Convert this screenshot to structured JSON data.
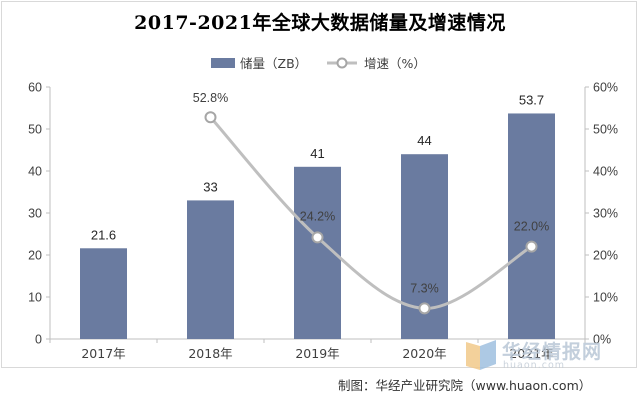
{
  "chart_data": {
    "type": "bar+line",
    "title": "2017-2021年全球大数据储量及增速情况",
    "categories": [
      "2017年",
      "2018年",
      "2019年",
      "2020年",
      "2021年"
    ],
    "bar_series": {
      "name": "储量（ZB）",
      "values": [
        21.6,
        33,
        41,
        44,
        53.7
      ],
      "labels": [
        "21.6",
        "33",
        "41",
        "44",
        "53.7"
      ],
      "color": "#6a7ba0"
    },
    "line_series": {
      "name": "增速（%）",
      "values": [
        null,
        52.8,
        24.2,
        7.3,
        22.0
      ],
      "labels": [
        "",
        "52.8%",
        "24.2%",
        "7.3%",
        "22.0%"
      ],
      "color": "#bfbfbf"
    },
    "y_left": {
      "ylim": [
        0,
        60
      ],
      "ticks": [
        0,
        10,
        20,
        30,
        40,
        50,
        60
      ]
    },
    "y_right": {
      "ylim": [
        0,
        60
      ],
      "ticks": [
        "0%",
        "10%",
        "20%",
        "30%",
        "40%",
        "50%",
        "60%"
      ]
    },
    "legend_position": "top-center",
    "grid": false
  },
  "source": "制图：华经产业研究院（www.huaon.com）",
  "watermark": {
    "text": "华经情报网",
    "url": "huaon.com"
  }
}
